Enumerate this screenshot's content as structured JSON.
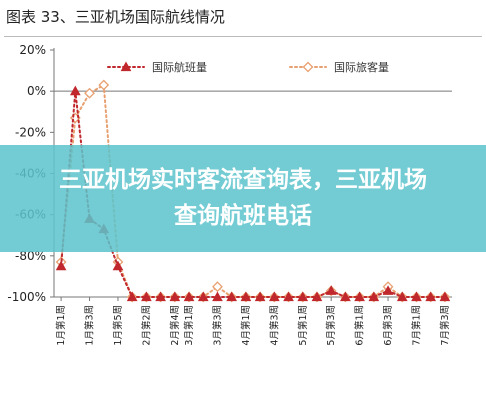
{
  "title": "图表 33、三亚机场国际航线情况",
  "overlay": {
    "text": "三亚机场实时客流查询表，三亚机场查询航班电话"
  },
  "chart_data": {
    "type": "line",
    "title": "图表 33、三亚机场国际航线情况",
    "ylabel": "",
    "xlabel": "",
    "ylim": [
      -100,
      20
    ],
    "yticks": [
      20,
      0,
      -20,
      -40,
      -60,
      -80,
      -100
    ],
    "ytick_labels": [
      "20%",
      "0%",
      "-20%",
      "-40%",
      "-60%",
      "-80%",
      "-100%"
    ],
    "grid": false,
    "legend_position": "top",
    "categories": [
      "1月第1周",
      "1月第2周",
      "1月第3周",
      "1月第4周",
      "1月第5周",
      "2月第1周",
      "2月第2周",
      "2月第3周",
      "2月第4周",
      "3月第1周",
      "3月第2周",
      "3月第3周",
      "3月第4周",
      "4月第1周",
      "4月第2周",
      "4月第3周",
      "4月第4周",
      "5月第1周",
      "5月第2周",
      "5月第3周",
      "5月第4周",
      "6月第1周",
      "6月第2周",
      "6月第3周",
      "6月第4周",
      "7月第1周",
      "7月第2周",
      "7月第3周"
    ],
    "x_tick_labels": [
      "1月第1周",
      "1月第3周",
      "1月第5周",
      "2月第2周",
      "2月第4周",
      "3月第1周",
      "3月第3周",
      "4月第1周",
      "4月第3周",
      "5月第1周",
      "5月第3周",
      "6月第1周",
      "6月第3周",
      "7月第1周",
      "7月第3周"
    ],
    "series": [
      {
        "name": "国际航班量",
        "color": "#c0282d",
        "marker": "triangle-filled",
        "values": [
          -85,
          0,
          -62,
          -67,
          -85,
          -100,
          -100,
          -100,
          -100,
          -100,
          -100,
          -100,
          -100,
          -100,
          -100,
          -100,
          -100,
          -100,
          -100,
          -97,
          -100,
          -100,
          -100,
          -97,
          -100,
          -100,
          -100,
          -100
        ]
      },
      {
        "name": "国际旅客量",
        "color": "#e8a070",
        "marker": "diamond-open",
        "values": [
          -83,
          -13,
          -1,
          3,
          -83,
          -100,
          -100,
          -100,
          -100,
          -100,
          -100,
          -95,
          -100,
          -100,
          -100,
          -100,
          -100,
          -100,
          -100,
          -97,
          -100,
          -100,
          -100,
          -95,
          -100,
          -100,
          -100,
          -100
        ]
      }
    ]
  }
}
